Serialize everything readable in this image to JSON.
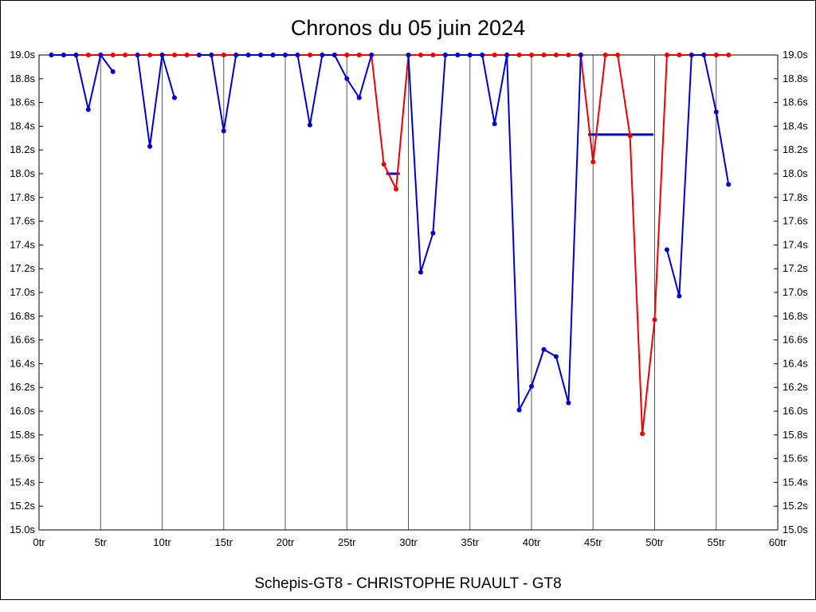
{
  "chart_data": {
    "type": "line",
    "title": "Chronos du 05 juin 2024",
    "footer": "Schepis-GT8 - CHRISTOPHE RUAULT - GT8",
    "x_unit": "tr",
    "y_unit": "s",
    "xlim": [
      0,
      60
    ],
    "ylim": [
      15.0,
      19.0
    ],
    "grid": "vertical-only",
    "legend_position": "none",
    "x_tick_labels": [
      "0tr",
      "5tr",
      "10tr",
      "15tr",
      "20tr",
      "25tr",
      "30tr",
      "35tr",
      "40tr",
      "45tr",
      "50tr",
      "55tr",
      "60tr"
    ],
    "y_tick_labels": [
      "19.0s",
      "18.8s",
      "18.6s",
      "18.4s",
      "18.2s",
      "18.0s",
      "17.8s",
      "17.6s",
      "17.4s",
      "17.2s",
      "17.0s",
      "16.8s",
      "16.6s",
      "16.4s",
      "16.2s",
      "16.0s",
      "15.8s",
      "15.6s",
      "15.4s",
      "15.2s",
      "15.0s"
    ],
    "series": [
      {
        "id": "ruault-red",
        "name": "CHRISTOPHE RUAULT - GT8",
        "color": "#ee0000",
        "points": [
          [
            1,
            19.0
          ],
          [
            2,
            19.0
          ],
          [
            3,
            19.0
          ],
          [
            4,
            19.0
          ],
          [
            5,
            19.0
          ],
          [
            6,
            19.0
          ],
          [
            7,
            19.0
          ],
          [
            8,
            19.0
          ],
          [
            9,
            19.0
          ],
          [
            10,
            19.0
          ],
          [
            11,
            19.0
          ],
          [
            12,
            19.0
          ],
          [
            13,
            19.0
          ],
          [
            14,
            19.0
          ],
          [
            15,
            19.0
          ],
          [
            16,
            19.0
          ],
          [
            17,
            19.0
          ],
          [
            18,
            19.0
          ],
          [
            19,
            19.0
          ],
          [
            20,
            19.0
          ],
          [
            21,
            19.0
          ],
          [
            22,
            19.0
          ],
          [
            23,
            19.0
          ],
          [
            24,
            19.0
          ],
          [
            25,
            19.0
          ],
          [
            26,
            19.0
          ],
          [
            27,
            19.0
          ],
          [
            28,
            18.08
          ],
          [
            29,
            17.87
          ],
          [
            30,
            19.0
          ],
          [
            31,
            19.0
          ],
          [
            32,
            19.0
          ],
          [
            33,
            19.0
          ],
          [
            34,
            19.0
          ],
          [
            35,
            19.0
          ],
          [
            36,
            19.0
          ],
          [
            37,
            19.0
          ],
          [
            38,
            19.0
          ],
          [
            39,
            19.0
          ],
          [
            40,
            19.0
          ],
          [
            41,
            19.0
          ],
          [
            42,
            19.0
          ],
          [
            43,
            19.0
          ],
          [
            44,
            19.0
          ],
          [
            45,
            18.1
          ],
          [
            46,
            19.0
          ],
          [
            47,
            19.0
          ],
          [
            48,
            18.32
          ],
          [
            49,
            15.81
          ],
          [
            50,
            16.77
          ],
          [
            51,
            19.0
          ],
          [
            52,
            19.0
          ],
          [
            53,
            19.0
          ],
          [
            54,
            19.0
          ],
          [
            55,
            19.0
          ],
          [
            56,
            19.0
          ]
        ]
      },
      {
        "id": "schepis-blue",
        "name": "Schepis-GT8",
        "color": "#0000cc",
        "points": [
          [
            1,
            19.0
          ],
          [
            2,
            19.0
          ],
          [
            3,
            19.0
          ],
          [
            4,
            18.54
          ],
          [
            5,
            19.0
          ],
          [
            6,
            18.86
          ],
          null,
          [
            8,
            19.0
          ],
          [
            9,
            18.23
          ],
          [
            10,
            19.0
          ],
          [
            11,
            18.64
          ],
          null,
          [
            13,
            19.0
          ],
          [
            14,
            19.0
          ],
          [
            15,
            18.36
          ],
          [
            16,
            19.0
          ],
          [
            17,
            19.0
          ],
          [
            18,
            19.0
          ],
          [
            19,
            19.0
          ],
          [
            20,
            19.0
          ],
          [
            21,
            19.0
          ],
          [
            22,
            18.41
          ],
          [
            23,
            19.0
          ],
          [
            24,
            19.0
          ],
          [
            25,
            18.8
          ],
          [
            26,
            18.64
          ],
          [
            27,
            19.0
          ],
          null,
          [
            30,
            19.0
          ],
          [
            31,
            17.17
          ],
          [
            32,
            17.5
          ],
          [
            33,
            19.0
          ],
          [
            34,
            19.0
          ],
          [
            35,
            19.0
          ],
          [
            36,
            19.0
          ],
          [
            37,
            18.42
          ],
          [
            38,
            19.0
          ],
          [
            39,
            16.01
          ],
          [
            40,
            16.21
          ],
          [
            41,
            16.52
          ],
          [
            42,
            16.46
          ],
          [
            43,
            16.07
          ],
          [
            44,
            19.0
          ],
          null,
          [
            51,
            17.36
          ],
          [
            52,
            16.97
          ],
          [
            53,
            19.0
          ],
          [
            54,
            19.0
          ],
          [
            55,
            18.52
          ],
          [
            56,
            17.91
          ]
        ]
      }
    ],
    "annotations": [
      {
        "id": "blue-dash-18s",
        "color": "#0000cc",
        "y": 18.0,
        "x1": 28.2,
        "x2": 29.3,
        "width": 3
      },
      {
        "id": "blue-line-18.33s",
        "color": "#0000cc",
        "y": 18.33,
        "x1": 44.6,
        "x2": 49.9,
        "width": 3
      }
    ]
  },
  "colors": {
    "series_blue": "#0000cc",
    "series_red": "#ee0000",
    "grid": "#555555",
    "frame": "#000000",
    "background": "#ffffff",
    "text": "#000000"
  }
}
